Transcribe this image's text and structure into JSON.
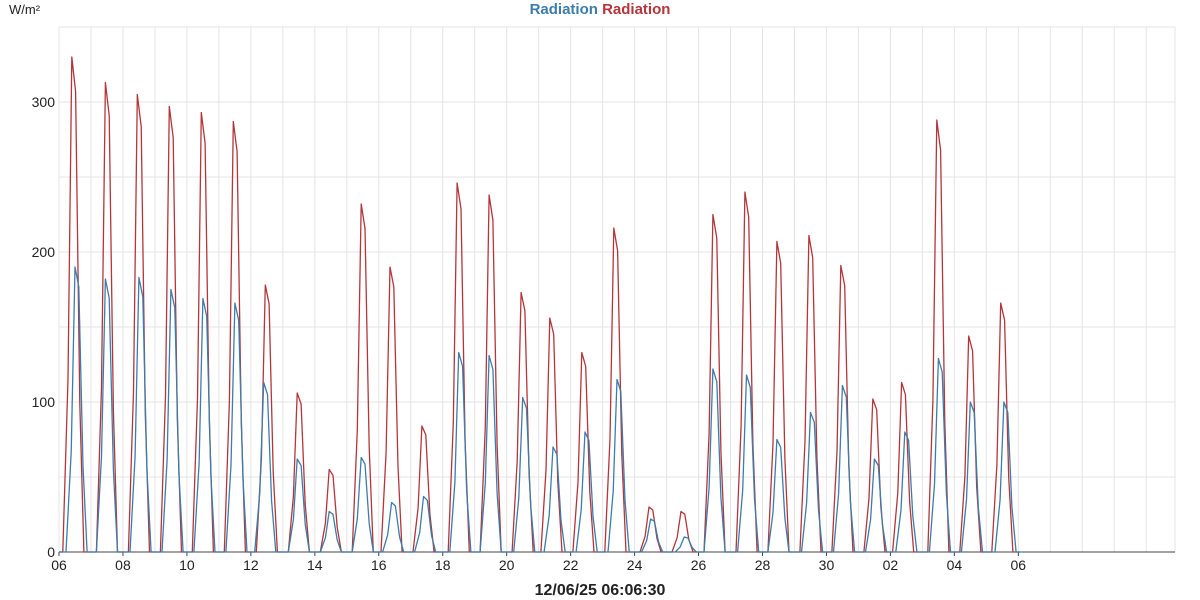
{
  "header": {
    "unit": "W/m²",
    "legend": [
      {
        "label": "Radiation",
        "color": "#3b7dab"
      },
      {
        "label": "Radiation",
        "color": "#b5353a"
      }
    ]
  },
  "footer": {
    "timestamp": "12/06/25 06:06:30"
  },
  "chart_data": {
    "type": "line",
    "title": "",
    "ylabel": "W/m²",
    "xlabel": "",
    "ylim": [
      0,
      350
    ],
    "yticks": [
      0,
      100,
      200,
      300
    ],
    "xlim": [
      0,
      34.9
    ],
    "xticks": [
      {
        "x": 0,
        "label": "06"
      },
      {
        "x": 2,
        "label": "08"
      },
      {
        "x": 4,
        "label": "10"
      },
      {
        "x": 6,
        "label": "12"
      },
      {
        "x": 8,
        "label": "14"
      },
      {
        "x": 10,
        "label": "16"
      },
      {
        "x": 12,
        "label": "18"
      },
      {
        "x": 14,
        "label": "20"
      },
      {
        "x": 16,
        "label": "22"
      },
      {
        "x": 18,
        "label": "24"
      },
      {
        "x": 20,
        "label": "26"
      },
      {
        "x": 22,
        "label": "28"
      },
      {
        "x": 24,
        "label": "30"
      },
      {
        "x": 26,
        "label": "02"
      },
      {
        "x": 28,
        "label": "04"
      },
      {
        "x": 30,
        "label": "06"
      }
    ],
    "grid": true,
    "legend_position": "top-center",
    "series": [
      {
        "name": "Radiation",
        "color": "#b5353a",
        "peaks": [
          [
            0.45,
            330
          ],
          [
            1.5,
            313
          ],
          [
            2.5,
            305
          ],
          [
            3.5,
            297
          ],
          [
            4.5,
            293
          ],
          [
            5.5,
            287
          ],
          [
            6.5,
            178
          ],
          [
            7.5,
            106
          ],
          [
            8.5,
            55
          ],
          [
            9.5,
            232
          ],
          [
            10.4,
            190
          ],
          [
            11.4,
            84
          ],
          [
            12.5,
            246
          ],
          [
            13.5,
            238
          ],
          [
            14.5,
            173
          ],
          [
            15.4,
            156
          ],
          [
            16.4,
            133
          ],
          [
            17.4,
            216
          ],
          [
            18.5,
            30
          ],
          [
            19.5,
            27
          ],
          [
            20.5,
            225
          ],
          [
            21.5,
            240
          ],
          [
            22.5,
            207
          ],
          [
            23.5,
            211
          ],
          [
            24.5,
            191
          ],
          [
            25.5,
            102
          ],
          [
            26.4,
            113
          ],
          [
            27.5,
            288
          ],
          [
            28.5,
            144
          ],
          [
            29.5,
            166
          ]
        ]
      },
      {
        "name": "Radiation",
        "color": "#3b7dab",
        "peaks": [
          [
            0.55,
            190
          ],
          [
            1.5,
            182
          ],
          [
            2.55,
            183
          ],
          [
            3.55,
            175
          ],
          [
            4.55,
            169
          ],
          [
            5.55,
            166
          ],
          [
            6.45,
            113
          ],
          [
            7.5,
            62
          ],
          [
            8.5,
            27
          ],
          [
            9.5,
            63
          ],
          [
            10.45,
            33
          ],
          [
            11.45,
            37
          ],
          [
            12.55,
            133
          ],
          [
            13.5,
            131
          ],
          [
            14.55,
            103
          ],
          [
            15.5,
            70
          ],
          [
            16.5,
            80
          ],
          [
            17.5,
            115
          ],
          [
            18.55,
            22
          ],
          [
            19.6,
            10
          ],
          [
            20.5,
            122
          ],
          [
            21.55,
            118
          ],
          [
            22.5,
            75
          ],
          [
            23.55,
            93
          ],
          [
            24.55,
            111
          ],
          [
            25.55,
            62
          ],
          [
            26.5,
            80
          ],
          [
            27.55,
            129
          ],
          [
            28.55,
            100
          ],
          [
            29.6,
            100
          ]
        ]
      }
    ]
  }
}
